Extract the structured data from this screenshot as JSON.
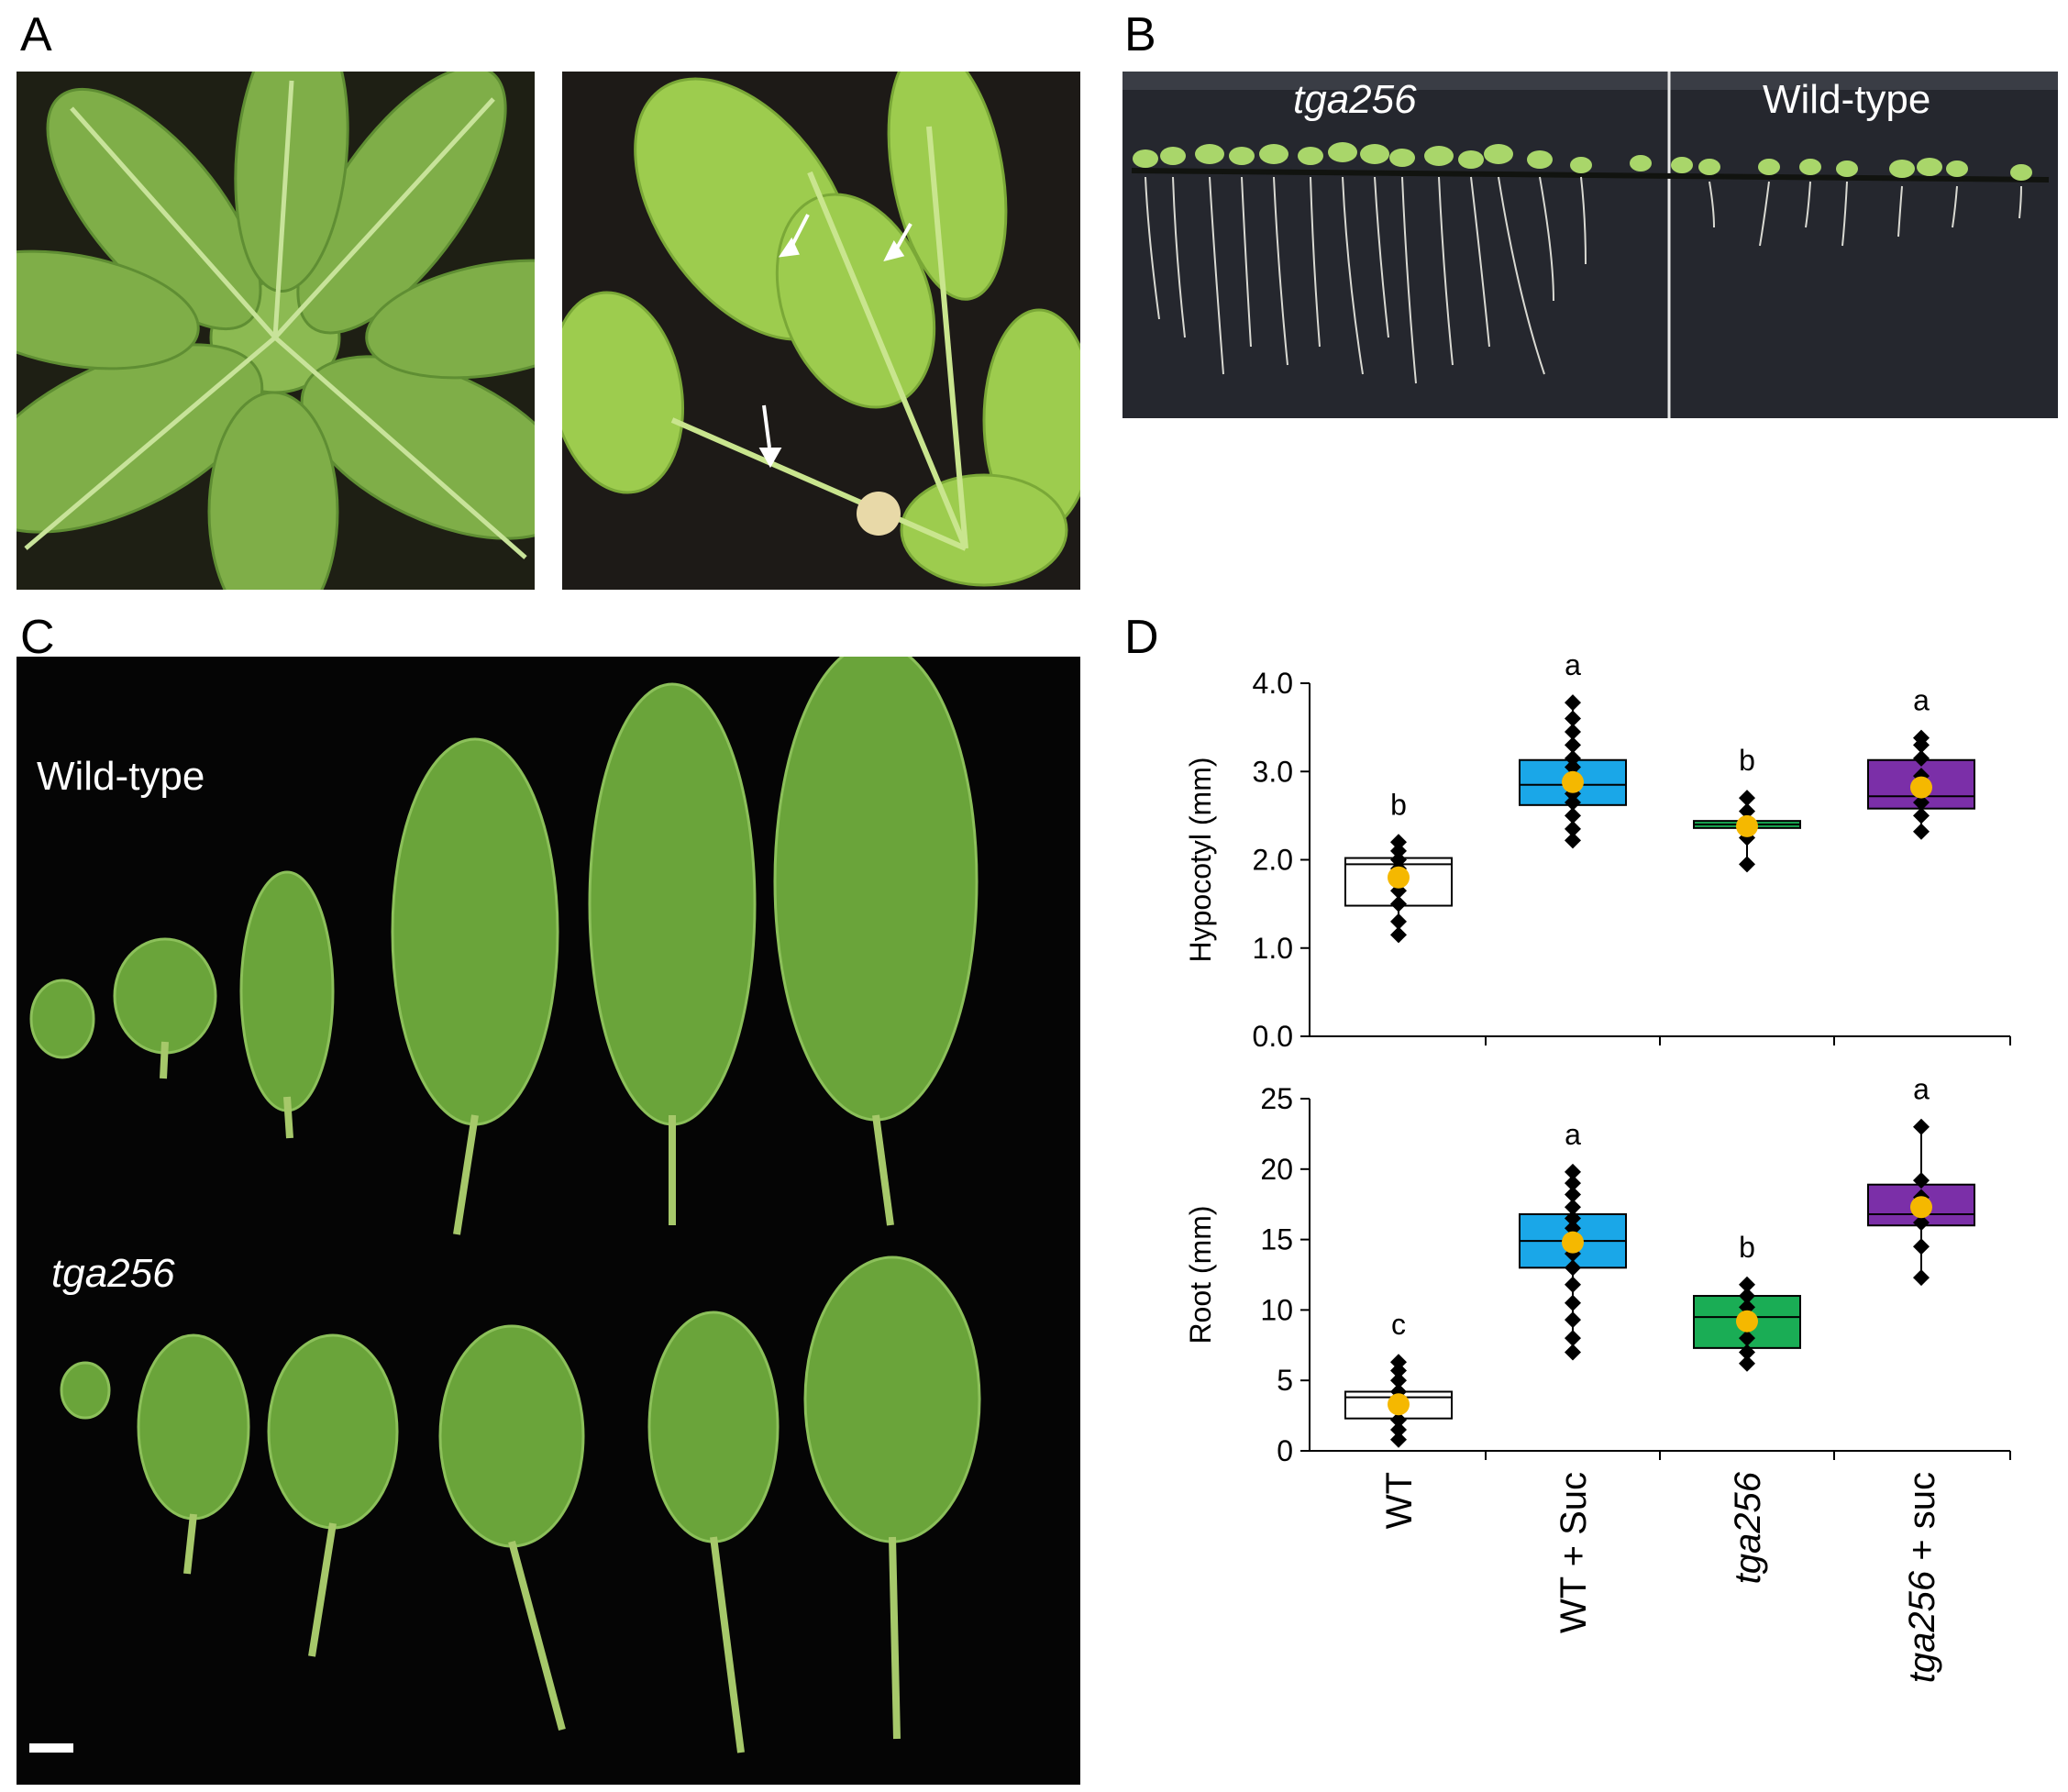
{
  "panels": {
    "a": {
      "letter": "A"
    },
    "b": {
      "letter": "B",
      "label_mutant": "tga256",
      "label_wt": "Wild-type"
    },
    "c": {
      "letter": "C",
      "label_wt": "Wild-type",
      "label_mutant": "tga256"
    },
    "d": {
      "letter": "D"
    }
  },
  "colors": {
    "wt": "#ffffff",
    "wt_suc": "#1aa7e8",
    "tga256": "#1aad55",
    "tga256_suc": "#7b2fa8",
    "mean_marker": "#f5b800",
    "points": "#000000"
  },
  "chart_data": [
    {
      "type": "box",
      "ylabel": "Hypocotyl (mm)",
      "ylim": [
        0,
        4
      ],
      "yticks": [
        "0.0",
        "1.0",
        "2.0",
        "3.0",
        "4.0"
      ],
      "categories": [
        "WT",
        "WT + Suc",
        "tga256",
        "tga256 + suc"
      ],
      "boxes": [
        {
          "q1": 1.48,
          "median": 1.95,
          "q3": 2.02,
          "whisker_low": 1.15,
          "whisker_high": 2.2,
          "mean": 1.8,
          "letter": "b",
          "points": [
            1.15,
            1.3,
            1.5,
            1.65,
            1.8,
            1.9,
            2.0,
            2.1,
            2.2
          ]
        },
        {
          "q1": 2.62,
          "median": 2.85,
          "q3": 3.13,
          "whisker_low": 2.22,
          "whisker_high": 3.78,
          "mean": 2.88,
          "letter": "a",
          "points": [
            2.22,
            2.35,
            2.5,
            2.65,
            2.75,
            2.85,
            2.95,
            3.05,
            3.15,
            3.3,
            3.45,
            3.6,
            3.78
          ]
        },
        {
          "q1": 2.36,
          "median": 2.4,
          "q3": 2.44,
          "whisker_low": 1.95,
          "whisker_high": 2.7,
          "mean": 2.38,
          "letter": "b",
          "points": [
            1.95,
            2.25,
            2.4,
            2.55,
            2.7
          ]
        },
        {
          "q1": 2.58,
          "median": 2.72,
          "q3": 3.13,
          "whisker_low": 2.32,
          "whisker_high": 3.38,
          "mean": 2.82,
          "letter": "a",
          "points": [
            2.32,
            2.5,
            2.65,
            2.8,
            2.95,
            3.15,
            3.3,
            3.38
          ]
        }
      ]
    },
    {
      "type": "box",
      "ylabel": "Root (mm)",
      "ylim": [
        0,
        25
      ],
      "yticks": [
        "0",
        "5",
        "10",
        "15",
        "20",
        "25"
      ],
      "categories": [
        "WT",
        "WT + Suc",
        "tga256",
        "tga256 + suc"
      ],
      "boxes": [
        {
          "q1": 2.3,
          "median": 3.8,
          "q3": 4.2,
          "whisker_low": 0.8,
          "whisker_high": 6.3,
          "mean": 3.3,
          "letter": "c",
          "points": [
            0.8,
            1.5,
            2.2,
            3.0,
            3.6,
            4.2,
            5.0,
            5.7,
            6.3
          ]
        },
        {
          "q1": 13.0,
          "median": 14.9,
          "q3": 16.8,
          "whisker_low": 7.0,
          "whisker_high": 19.8,
          "mean": 14.8,
          "letter": "a",
          "points": [
            7.0,
            8.0,
            9.3,
            10.5,
            11.8,
            13.0,
            14.0,
            15.0,
            15.8,
            16.5,
            17.3,
            18.2,
            19.0,
            19.8
          ]
        },
        {
          "q1": 7.3,
          "median": 9.5,
          "q3": 11.0,
          "whisker_low": 6.2,
          "whisker_high": 11.8,
          "mean": 9.2,
          "letter": "b",
          "points": [
            6.2,
            7.0,
            8.0,
            9.2,
            10.2,
            11.0,
            11.8
          ]
        },
        {
          "q1": 16.0,
          "median": 16.8,
          "q3": 18.9,
          "whisker_low": 12.3,
          "whisker_high": 23.0,
          "mean": 17.3,
          "letter": "a",
          "points": [
            12.3,
            14.5,
            16.2,
            17.0,
            18.0,
            19.2,
            23.0
          ]
        }
      ]
    }
  ]
}
